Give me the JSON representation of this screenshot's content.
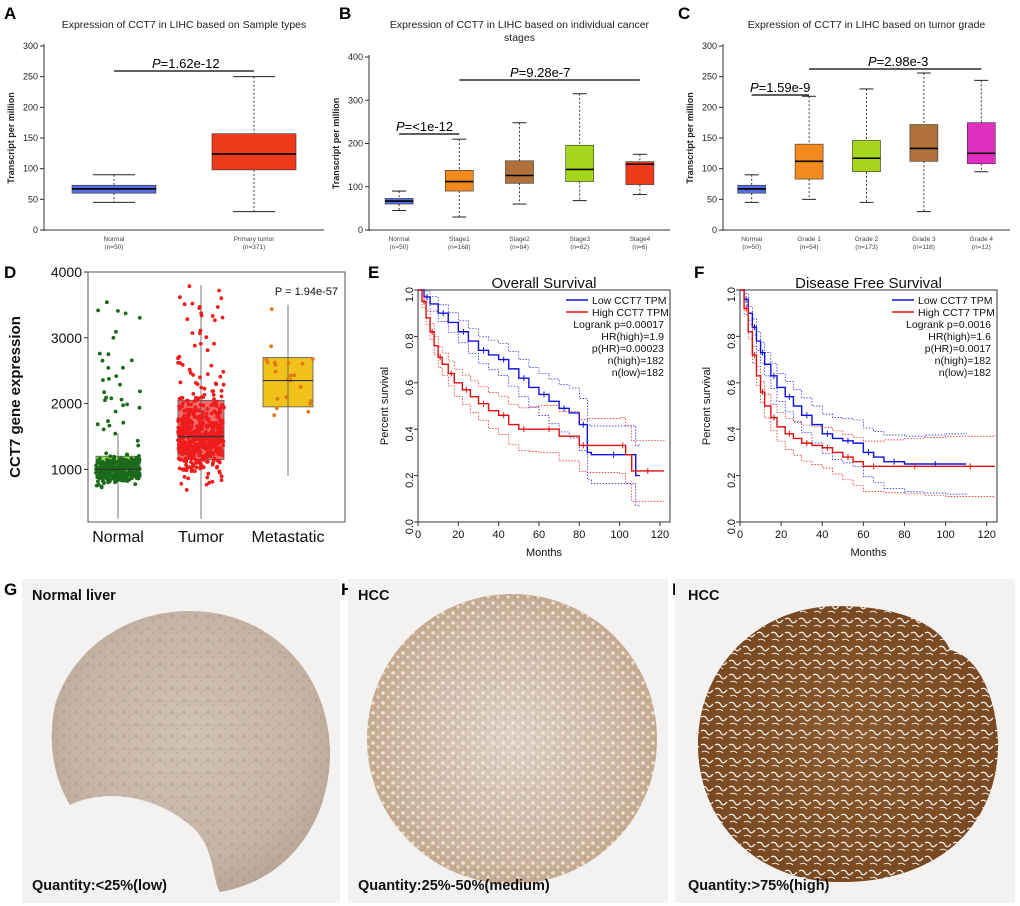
{
  "panel_labels": {
    "A": "A",
    "B": "B",
    "C": "C",
    "D": "D",
    "E": "E",
    "F": "F",
    "G": "G",
    "H": "H",
    "I": "I"
  },
  "colors": {
    "normal_box": "#5470e0",
    "primary_tumor_box": "#ee3a1a",
    "stage1": "#f28a1e",
    "stage2": "#b0713a",
    "stage3": "#a6d61c",
    "stage4": "#ee3a1a",
    "grade1": "#f28a1e",
    "grade2": "#a6d61c",
    "grade3": "#b0713a",
    "grade4": "#e02fc0",
    "d_normal": "#1a6a1a",
    "d_tumor": "#ee1c1c",
    "d_metastatic": "#e07a12",
    "d_normal_box": "#9be055",
    "d_tumor_box": "#f06a6a",
    "d_meta_box": "#f2c21c",
    "km_low": "#1010dd",
    "km_high": "#dd1010"
  },
  "chart_data": [
    {
      "id": "A",
      "type": "box",
      "title": "Expression of CCT7 in LIHC based on Sample types",
      "ylabel": "Transcript per million",
      "ylim": [
        0,
        300
      ],
      "yticks": [
        0,
        50,
        100,
        150,
        200,
        250,
        300
      ],
      "categories": [
        {
          "name": "Normal",
          "n": "(n=50)",
          "min": 45,
          "q1": 60,
          "median": 67,
          "q3": 73,
          "max": 90
        },
        {
          "name": "Primary tumor",
          "n": "(n=371)",
          "min": 30,
          "q1": 98,
          "median": 124,
          "q3": 157,
          "max": 250
        }
      ],
      "comparisons": [
        {
          "label": "P",
          "value": "=1.62e-12"
        }
      ]
    },
    {
      "id": "B",
      "type": "box",
      "title": "Expression of CCT7 in LIHC based on individual cancer",
      "title2": "stages",
      "ylabel": "Transcript per million",
      "ylim": [
        0,
        400
      ],
      "yticks": [
        0,
        100,
        200,
        300,
        400
      ],
      "categories": [
        {
          "name": "Normal",
          "n": "(n=50)",
          "min": 45,
          "q1": 60,
          "median": 67,
          "q3": 73,
          "max": 90
        },
        {
          "name": "Stage1",
          "n": "(n=168)",
          "min": 30,
          "q1": 90,
          "median": 112,
          "q3": 138,
          "max": 210
        },
        {
          "name": "Stage2",
          "n": "(n=84)",
          "min": 60,
          "q1": 108,
          "median": 126,
          "q3": 160,
          "max": 248
        },
        {
          "name": "Stage3",
          "n": "(n=82)",
          "min": 68,
          "q1": 112,
          "median": 140,
          "q3": 196,
          "max": 315
        },
        {
          "name": "Stage4",
          "n": "(n=6)",
          "min": 82,
          "q1": 105,
          "median": 152,
          "q3": 158,
          "max": 175
        }
      ],
      "comparisons": [
        {
          "label": "P",
          "value": "=<1e-12"
        },
        {
          "label": "P",
          "value": "=9.28e-7"
        }
      ]
    },
    {
      "id": "C",
      "type": "box",
      "title": "Expression of CCT7 in LIHC based on tumor grade",
      "ylabel": "Transcript per million",
      "ylim": [
        0,
        300
      ],
      "yticks": [
        0,
        50,
        100,
        150,
        200,
        250,
        300
      ],
      "categories": [
        {
          "name": "Normal",
          "n": "(n=50)",
          "min": 45,
          "q1": 60,
          "median": 67,
          "q3": 73,
          "max": 90
        },
        {
          "name": "Grade 1",
          "n": "(n=54)",
          "min": 50,
          "q1": 83,
          "median": 112,
          "q3": 140,
          "max": 218
        },
        {
          "name": "Grade 2",
          "n": "(n=173)",
          "min": 45,
          "q1": 95,
          "median": 117,
          "q3": 146,
          "max": 230
        },
        {
          "name": "Grade 3",
          "n": "(n=118)",
          "min": 30,
          "q1": 112,
          "median": 133,
          "q3": 172,
          "max": 256
        },
        {
          "name": "Grade 4",
          "n": "(n=12)",
          "min": 95,
          "q1": 108,
          "median": 125,
          "q3": 175,
          "max": 244
        }
      ],
      "comparisons": [
        {
          "label": "P",
          "value": "=1.59e-9"
        },
        {
          "label": "P",
          "value": "=2.98e-3"
        }
      ]
    },
    {
      "id": "D",
      "type": "scatter-box",
      "ylabel": "CCT7 gene expression",
      "ylim": [
        200,
        4000
      ],
      "yticks": [
        1000,
        2000,
        3000,
        4000
      ],
      "pvalue": "P = 1.94e-57",
      "categories": [
        {
          "name": "Normal",
          "min": 250,
          "q1": 900,
          "median": 1000,
          "q3": 1200,
          "max": 1550,
          "outlier_max": 3700,
          "n_points": 380
        },
        {
          "name": "Tumor",
          "min": 250,
          "q1": 1150,
          "median": 1500,
          "q3": 2050,
          "max": 3800,
          "outlier_max": 3850,
          "n_points": 560
        },
        {
          "name": "Metastatic",
          "min": 900,
          "q1": 1950,
          "median": 2350,
          "q3": 2700,
          "max": 3500,
          "outlier_max": 3500,
          "n_points": 22
        }
      ]
    },
    {
      "id": "E",
      "type": "line",
      "title": "Overall Survival",
      "xlabel": "Months",
      "ylabel": "Percent survival",
      "xlim": [
        0,
        125
      ],
      "ylim": [
        0,
        1
      ],
      "xticks": [
        0,
        20,
        40,
        60,
        80,
        100,
        120
      ],
      "yticks": [
        0.0,
        0.2,
        0.4,
        0.6,
        0.8,
        1.0
      ],
      "legend": [
        "Low CCT7 TPM",
        "High CCT7 TPM",
        "Logrank p=0.00017",
        "HR(high)=1.9",
        "p(HR)=0.00023",
        "n(high)=182",
        "n(low)=182"
      ],
      "series": [
        {
          "name": "Low CCT7 TPM",
          "x": [
            0,
            3,
            6,
            10,
            15,
            20,
            25,
            30,
            35,
            40,
            45,
            50,
            55,
            60,
            65,
            70,
            75,
            80,
            84,
            86,
            108,
            110
          ],
          "y": [
            1.0,
            0.97,
            0.94,
            0.9,
            0.86,
            0.82,
            0.78,
            0.74,
            0.72,
            0.7,
            0.66,
            0.62,
            0.58,
            0.55,
            0.52,
            0.49,
            0.47,
            0.42,
            0.3,
            0.29,
            0.2,
            0.2
          ]
        },
        {
          "name": "High CCT7 TPM",
          "x": [
            0,
            2,
            4,
            6,
            8,
            10,
            12,
            15,
            18,
            22,
            26,
            30,
            35,
            40,
            45,
            50,
            55,
            60,
            70,
            80,
            84,
            100,
            103,
            106,
            122
          ],
          "y": [
            1.0,
            0.95,
            0.88,
            0.82,
            0.76,
            0.71,
            0.68,
            0.64,
            0.6,
            0.57,
            0.54,
            0.51,
            0.48,
            0.46,
            0.42,
            0.4,
            0.4,
            0.4,
            0.37,
            0.33,
            0.33,
            0.33,
            0.29,
            0.22,
            0.22
          ]
        }
      ]
    },
    {
      "id": "F",
      "type": "line",
      "title": "Disease Free Survival",
      "xlabel": "Months",
      "ylabel": "Percent survival",
      "xlim": [
        0,
        125
      ],
      "ylim": [
        0,
        1
      ],
      "xticks": [
        0,
        20,
        40,
        60,
        80,
        100,
        120
      ],
      "yticks": [
        0.0,
        0.2,
        0.4,
        0.6,
        0.8,
        1.0
      ],
      "legend": [
        "Low CCT7 TPM",
        "High CCT7 TPM",
        "Logrank p=0.0016",
        "HR(high)=1.6",
        "p(HR)=0.0017",
        "n(high)=182",
        "n(low)=182"
      ],
      "series": [
        {
          "name": "Low CCT7 TPM",
          "x": [
            0,
            2,
            4,
            6,
            8,
            10,
            12,
            15,
            18,
            22,
            26,
            30,
            35,
            40,
            45,
            50,
            55,
            60,
            65,
            70,
            80,
            90,
            100,
            110
          ],
          "y": [
            1.0,
            0.96,
            0.9,
            0.84,
            0.78,
            0.73,
            0.68,
            0.63,
            0.58,
            0.54,
            0.5,
            0.46,
            0.42,
            0.38,
            0.36,
            0.35,
            0.34,
            0.3,
            0.28,
            0.26,
            0.25,
            0.25,
            0.25,
            0.25
          ]
        },
        {
          "name": "High CCT7 TPM",
          "x": [
            0,
            2,
            4,
            6,
            8,
            10,
            12,
            15,
            18,
            22,
            26,
            30,
            35,
            40,
            45,
            50,
            55,
            60,
            70,
            80,
            90,
            100,
            124
          ],
          "y": [
            1.0,
            0.92,
            0.82,
            0.72,
            0.63,
            0.56,
            0.5,
            0.45,
            0.41,
            0.38,
            0.36,
            0.34,
            0.33,
            0.32,
            0.3,
            0.28,
            0.26,
            0.24,
            0.24,
            0.24,
            0.24,
            0.24,
            0.24
          ]
        }
      ]
    }
  ],
  "ihc": [
    {
      "id": "G",
      "title": "Normal liver",
      "quantity": "Quantity:<25%(low)"
    },
    {
      "id": "H",
      "title": "HCC",
      "quantity": "Quantity:25%-50%(medium)"
    },
    {
      "id": "I",
      "title": "HCC",
      "quantity": "Quantity:>75%(high)"
    }
  ]
}
